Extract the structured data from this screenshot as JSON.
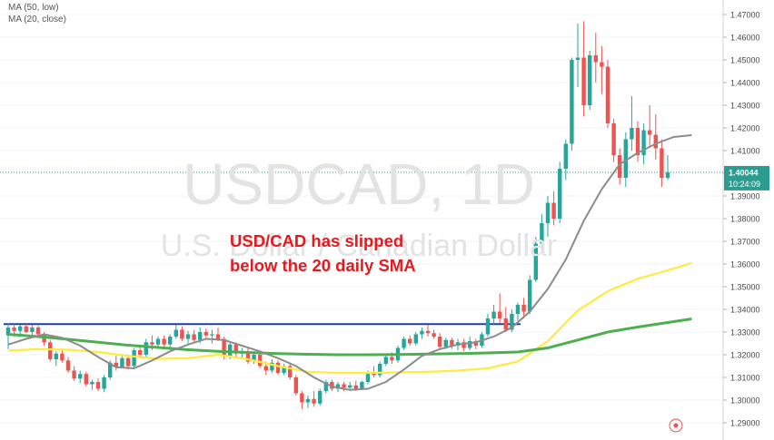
{
  "legend": {
    "ma_low": "MA (50, low)",
    "ma_close": "MA (20, close)"
  },
  "watermark": {
    "symbol": "USDCAD, 1D",
    "name": "U.S. Dollar / Canadian Dollar"
  },
  "annotation": {
    "line1": "USD/CAD has slipped",
    "line2": "below the 20 daily SMA"
  },
  "price_labels": {
    "last_price": "1.40044",
    "countdown": "10:24:09"
  },
  "colors": {
    "up": "#26a69a",
    "down": "#ef5350",
    "ma_fast": "#8c8c8c",
    "ma_50_low": "#4caf50",
    "ma_yellow": "#ffeb3b",
    "resistance": "#1a3f9c",
    "annotation": "#e8191e",
    "price_tag": "#2b9c8f"
  },
  "chart_data": {
    "type": "candlestick",
    "title": "USDCAD, 1D",
    "ylim": [
      1.285,
      1.4745
    ],
    "yticks": [
      "1.29000",
      "1.30000",
      "1.31000",
      "1.32000",
      "1.33000",
      "1.34000",
      "1.35000",
      "1.36000",
      "1.37000",
      "1.38000",
      "1.39000",
      "1.40000",
      "1.41000",
      "1.42000",
      "1.43000",
      "1.44000",
      "1.45000",
      "1.46000",
      "1.47000"
    ],
    "resistance_level": 1.3335,
    "last_price": 1.40044,
    "candles": [
      [
        1.3285,
        1.3338,
        1.3225,
        1.332
      ],
      [
        1.332,
        1.3336,
        1.328,
        1.3305
      ],
      [
        1.3305,
        1.333,
        1.329,
        1.3325
      ],
      [
        1.3325,
        1.3335,
        1.3295,
        1.33
      ],
      [
        1.33,
        1.333,
        1.3285,
        1.332
      ],
      [
        1.332,
        1.3328,
        1.328,
        1.329
      ],
      [
        1.329,
        1.33,
        1.324,
        1.3255
      ],
      [
        1.3255,
        1.3265,
        1.317,
        1.318
      ],
      [
        1.318,
        1.3215,
        1.315,
        1.3205
      ],
      [
        1.3205,
        1.3225,
        1.3165,
        1.3175
      ],
      [
        1.3175,
        1.319,
        1.312,
        1.313
      ],
      [
        1.313,
        1.315,
        1.3085,
        1.3095
      ],
      [
        1.3095,
        1.313,
        1.3075,
        1.3115
      ],
      [
        1.3115,
        1.3125,
        1.306,
        1.307
      ],
      [
        1.307,
        1.309,
        1.3045,
        1.308
      ],
      [
        1.308,
        1.3095,
        1.304,
        1.305
      ],
      [
        1.305,
        1.311,
        1.3035,
        1.31
      ],
      [
        1.31,
        1.3175,
        1.309,
        1.3165
      ],
      [
        1.3165,
        1.3195,
        1.313,
        1.3145
      ],
      [
        1.3145,
        1.3195,
        1.314,
        1.3185
      ],
      [
        1.3185,
        1.32,
        1.3135,
        1.315
      ],
      [
        1.315,
        1.323,
        1.314,
        1.322
      ],
      [
        1.322,
        1.3245,
        1.319,
        1.32
      ],
      [
        1.32,
        1.327,
        1.319,
        1.3255
      ],
      [
        1.3255,
        1.3285,
        1.322,
        1.3245
      ],
      [
        1.3245,
        1.328,
        1.323,
        1.327
      ],
      [
        1.327,
        1.3285,
        1.323,
        1.3245
      ],
      [
        1.3245,
        1.329,
        1.322,
        1.328
      ],
      [
        1.328,
        1.333,
        1.327,
        1.331
      ],
      [
        1.331,
        1.3325,
        1.326,
        1.327
      ],
      [
        1.327,
        1.3305,
        1.325,
        1.329
      ],
      [
        1.329,
        1.331,
        1.3255,
        1.3265
      ],
      [
        1.3265,
        1.332,
        1.325,
        1.33
      ],
      [
        1.33,
        1.3315,
        1.327,
        1.3285
      ],
      [
        1.3285,
        1.331,
        1.325,
        1.329
      ],
      [
        1.329,
        1.332,
        1.326,
        1.327
      ],
      [
        1.327,
        1.328,
        1.318,
        1.3195
      ],
      [
        1.3195,
        1.326,
        1.318,
        1.3245
      ],
      [
        1.3245,
        1.3255,
        1.319,
        1.3205
      ],
      [
        1.3205,
        1.323,
        1.3185,
        1.3215
      ],
      [
        1.3215,
        1.3235,
        1.316,
        1.317
      ],
      [
        1.317,
        1.3215,
        1.316,
        1.32
      ],
      [
        1.32,
        1.321,
        1.314,
        1.315
      ],
      [
        1.315,
        1.317,
        1.311,
        1.313
      ],
      [
        1.313,
        1.318,
        1.312,
        1.3165
      ],
      [
        1.3165,
        1.3175,
        1.311,
        1.312
      ],
      [
        1.312,
        1.316,
        1.311,
        1.315
      ],
      [
        1.315,
        1.316,
        1.309,
        1.31
      ],
      [
        1.31,
        1.311,
        1.302,
        1.303
      ],
      [
        1.303,
        1.304,
        1.296,
        1.299
      ],
      [
        1.299,
        1.302,
        1.2965,
        1.3005
      ],
      [
        1.3005,
        1.304,
        1.297,
        1.2985
      ],
      [
        1.2985,
        1.305,
        1.2975,
        1.304
      ],
      [
        1.304,
        1.309,
        1.303,
        1.308
      ],
      [
        1.308,
        1.309,
        1.304,
        1.305
      ],
      [
        1.305,
        1.308,
        1.3035,
        1.307
      ],
      [
        1.307,
        1.308,
        1.304,
        1.3055
      ],
      [
        1.3055,
        1.308,
        1.304,
        1.3065
      ],
      [
        1.3065,
        1.3085,
        1.304,
        1.305
      ],
      [
        1.305,
        1.3085,
        1.3045,
        1.308
      ],
      [
        1.308,
        1.313,
        1.307,
        1.312
      ],
      [
        1.312,
        1.315,
        1.31,
        1.311
      ],
      [
        1.311,
        1.317,
        1.31,
        1.316
      ],
      [
        1.316,
        1.32,
        1.315,
        1.319
      ],
      [
        1.319,
        1.321,
        1.316,
        1.3175
      ],
      [
        1.3175,
        1.324,
        1.3165,
        1.323
      ],
      [
        1.323,
        1.328,
        1.322,
        1.327
      ],
      [
        1.327,
        1.3285,
        1.324,
        1.325
      ],
      [
        1.325,
        1.33,
        1.324,
        1.329
      ],
      [
        1.329,
        1.332,
        1.327,
        1.3305
      ],
      [
        1.3305,
        1.333,
        1.328,
        1.3295
      ],
      [
        1.3295,
        1.331,
        1.327,
        1.328
      ],
      [
        1.328,
        1.3295,
        1.322,
        1.3235
      ],
      [
        1.3235,
        1.3275,
        1.3225,
        1.3265
      ],
      [
        1.3265,
        1.3275,
        1.3225,
        1.324
      ],
      [
        1.324,
        1.327,
        1.322,
        1.3255
      ],
      [
        1.3255,
        1.327,
        1.3215,
        1.323
      ],
      [
        1.323,
        1.328,
        1.322,
        1.326
      ],
      [
        1.326,
        1.327,
        1.3225,
        1.324
      ],
      [
        1.324,
        1.33,
        1.323,
        1.329
      ],
      [
        1.329,
        1.338,
        1.328,
        1.336
      ],
      [
        1.336,
        1.342,
        1.333,
        1.339
      ],
      [
        1.339,
        1.347,
        1.334,
        1.336
      ],
      [
        1.336,
        1.341,
        1.33,
        1.331
      ],
      [
        1.331,
        1.34,
        1.33,
        1.338
      ],
      [
        1.338,
        1.343,
        1.335,
        1.342
      ],
      [
        1.342,
        1.345,
        1.336,
        1.339
      ],
      [
        1.339,
        1.355,
        1.338,
        1.353
      ],
      [
        1.353,
        1.372,
        1.352,
        1.369
      ],
      [
        1.369,
        1.382,
        1.365,
        1.378
      ],
      [
        1.378,
        1.39,
        1.372,
        1.387
      ],
      [
        1.387,
        1.392,
        1.377,
        1.38
      ],
      [
        1.38,
        1.405,
        1.378,
        1.402
      ],
      [
        1.402,
        1.415,
        1.397,
        1.413
      ],
      [
        1.413,
        1.451,
        1.41,
        1.45
      ],
      [
        1.45,
        1.466,
        1.438,
        1.451
      ],
      [
        1.451,
        1.467,
        1.425,
        1.43
      ],
      [
        1.43,
        1.454,
        1.428,
        1.452
      ],
      [
        1.452,
        1.462,
        1.44,
        1.449
      ],
      [
        1.449,
        1.456,
        1.435,
        1.447
      ],
      [
        1.447,
        1.45,
        1.42,
        1.422
      ],
      [
        1.422,
        1.424,
        1.405,
        1.408
      ],
      [
        1.408,
        1.411,
        1.395,
        1.398
      ],
      [
        1.398,
        1.418,
        1.394,
        1.415
      ],
      [
        1.415,
        1.434,
        1.41,
        1.42
      ],
      [
        1.42,
        1.423,
        1.405,
        1.408
      ],
      [
        1.408,
        1.422,
        1.404,
        1.419
      ],
      [
        1.419,
        1.43,
        1.412,
        1.417
      ],
      [
        1.417,
        1.426,
        1.406,
        1.411
      ],
      [
        1.411,
        1.415,
        1.394,
        1.398
      ],
      [
        1.398,
        1.408,
        1.397,
        1.40044
      ]
    ],
    "ma_20_close": [
      [
        0,
        1.3245
      ],
      [
        3,
        1.327
      ],
      [
        6,
        1.329
      ],
      [
        9,
        1.3275
      ],
      [
        12,
        1.324
      ],
      [
        15,
        1.319
      ],
      [
        18,
        1.3145
      ],
      [
        21,
        1.314
      ],
      [
        24,
        1.3175
      ],
      [
        27,
        1.3215
      ],
      [
        30,
        1.3245
      ],
      [
        33,
        1.327
      ],
      [
        36,
        1.3265
      ],
      [
        39,
        1.324
      ],
      [
        42,
        1.3215
      ],
      [
        45,
        1.3185
      ],
      [
        48,
        1.315
      ],
      [
        51,
        1.31
      ],
      [
        54,
        1.306
      ],
      [
        57,
        1.3045
      ],
      [
        60,
        1.305
      ],
      [
        63,
        1.308
      ],
      [
        66,
        1.3135
      ],
      [
        69,
        1.3195
      ],
      [
        72,
        1.3225
      ],
      [
        75,
        1.3245
      ],
      [
        78,
        1.3255
      ],
      [
        81,
        1.328
      ],
      [
        84,
        1.332
      ],
      [
        87,
        1.339
      ],
      [
        90,
        1.349
      ],
      [
        93,
        1.362
      ],
      [
        96,
        1.379
      ],
      [
        99,
        1.393
      ],
      [
        102,
        1.404
      ],
      [
        105,
        1.409
      ],
      [
        108,
        1.413
      ],
      [
        111,
        1.416
      ],
      [
        114,
        1.4168
      ]
    ],
    "ma_50_low": [
      [
        0,
        1.329
      ],
      [
        5,
        1.328
      ],
      [
        10,
        1.3268
      ],
      [
        15,
        1.3255
      ],
      [
        20,
        1.3242
      ],
      [
        25,
        1.3232
      ],
      [
        30,
        1.3222
      ],
      [
        35,
        1.3215
      ],
      [
        40,
        1.321
      ],
      [
        45,
        1.3205
      ],
      [
        50,
        1.3202
      ],
      [
        55,
        1.32
      ],
      [
        60,
        1.32
      ],
      [
        65,
        1.3201
      ],
      [
        70,
        1.3203
      ],
      [
        75,
        1.3205
      ],
      [
        80,
        1.3208
      ],
      [
        85,
        1.3212
      ],
      [
        90,
        1.323
      ],
      [
        95,
        1.3265
      ],
      [
        100,
        1.33
      ],
      [
        105,
        1.3322
      ],
      [
        110,
        1.3342
      ],
      [
        114,
        1.3358
      ]
    ],
    "ma_yellow": [
      [
        0,
        1.3218
      ],
      [
        5,
        1.3225
      ],
      [
        10,
        1.3222
      ],
      [
        15,
        1.3212
      ],
      [
        20,
        1.3195
      ],
      [
        25,
        1.3182
      ],
      [
        30,
        1.3185
      ],
      [
        35,
        1.32
      ],
      [
        40,
        1.318
      ],
      [
        45,
        1.315
      ],
      [
        50,
        1.3125
      ],
      [
        55,
        1.312
      ],
      [
        60,
        1.312
      ],
      [
        65,
        1.3122
      ],
      [
        70,
        1.3125
      ],
      [
        75,
        1.313
      ],
      [
        80,
        1.314
      ],
      [
        85,
        1.317
      ],
      [
        90,
        1.326
      ],
      [
        95,
        1.3395
      ],
      [
        100,
        1.348
      ],
      [
        105,
        1.3535
      ],
      [
        110,
        1.3572
      ],
      [
        114,
        1.3604
      ]
    ]
  }
}
